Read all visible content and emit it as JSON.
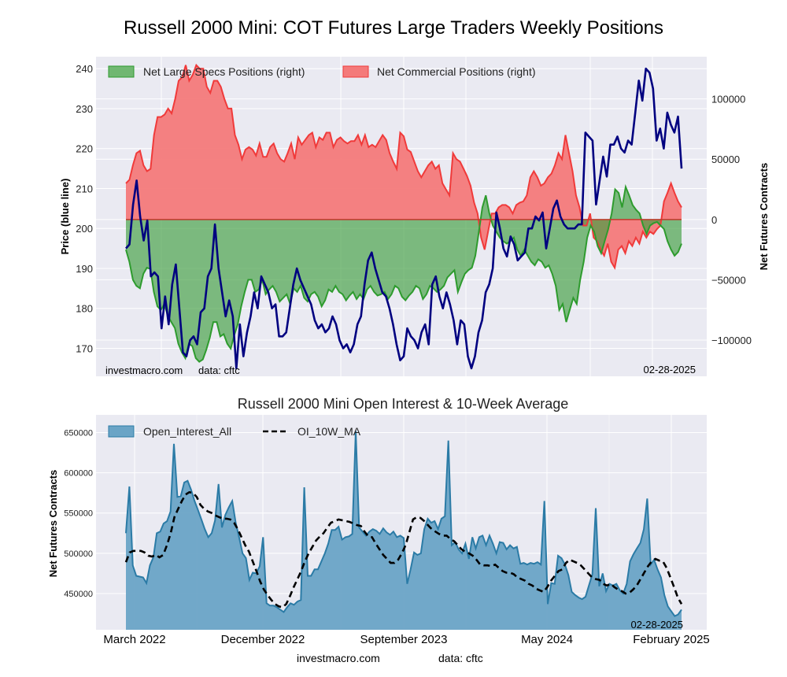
{
  "title": "Russell 2000 Mini: COT Futures Large Traders Weekly Positions",
  "colors": {
    "price": "#000080",
    "specs": "#2e9b2e",
    "commercial": "#f03a3a",
    "oi": "#2b7ba6",
    "ma": "#000000",
    "plot_bg": "#eaeaf2"
  },
  "chart_data": [
    {
      "type": "area",
      "title": "Russell 2000 Mini: COT Futures Large Traders Weekly Positions",
      "ylabel": "Price (blue line)",
      "ylabel_right": "Net Futures Contracts",
      "ylim": [
        163,
        243
      ],
      "ylim_right": [
        -130000,
        135000
      ],
      "yticks": [
        "170",
        "180",
        "190",
        "200",
        "210",
        "220",
        "230",
        "240"
      ],
      "yticks_right": [
        "-100000",
        "-50000",
        "0",
        "50000",
        "100000"
      ],
      "legend": [
        "Net Large Specs Positions (right)",
        "Net Commercial Positions (right)"
      ],
      "legend_position": "top-left",
      "watermark": "investmacro.com    data: cftc",
      "date_label": "02-28-2025",
      "x_start": "2022-02-22",
      "x_end": "2025-02-28",
      "series": [
        {
          "name": "Price (blue line)",
          "values": [
            195,
            196,
            206,
            212,
            203,
            197,
            202,
            188,
            189,
            188,
            175,
            183,
            176,
            186,
            191,
            180,
            169,
            168,
            172,
            173,
            171,
            179,
            180,
            188,
            190,
            201,
            190,
            184,
            178,
            182,
            178,
            165,
            176,
            168,
            174,
            178,
            184,
            180,
            188,
            186,
            184,
            180,
            181,
            173,
            173,
            174,
            180,
            186,
            190,
            187,
            185,
            183,
            181,
            177,
            175,
            176,
            174,
            175,
            178,
            176,
            172,
            170,
            171,
            169,
            171,
            176,
            178,
            186,
            192,
            194,
            190,
            187,
            184,
            183,
            180,
            176,
            171,
            167,
            168,
            175,
            173,
            172,
            170,
            174,
            176,
            171,
            186,
            188,
            183,
            180,
            184,
            181,
            177,
            171,
            177,
            176,
            168,
            165,
            168,
            174,
            177,
            184,
            186,
            190,
            204,
            200,
            195,
            193,
            198,
            196,
            192,
            193,
            194,
            200,
            200,
            203,
            202,
            204,
            195,
            200,
            205,
            207,
            203,
            201,
            200,
            200,
            200,
            201,
            201,
            224,
            223,
            222,
            206,
            212,
            218,
            213,
            221,
            221,
            223,
            220,
            219,
            222,
            221,
            229,
            237,
            232,
            240,
            239,
            235,
            222,
            225,
            220,
            229,
            226,
            224,
            228,
            215
          ]
        },
        {
          "name": "Net Large Specs Positions (right)",
          "values": [
            -25000,
            -35000,
            -50000,
            -55000,
            -57000,
            -45000,
            -40000,
            -41000,
            -60000,
            -72000,
            -75000,
            -70000,
            -80000,
            -85000,
            -90000,
            -103000,
            -110000,
            -115000,
            -103000,
            -105000,
            -115000,
            -118000,
            -116000,
            -108000,
            -98000,
            -85000,
            -85000,
            -97000,
            -95000,
            -103000,
            -107000,
            -96000,
            -87000,
            -72000,
            -60000,
            -50000,
            -50000,
            -60000,
            -58000,
            -50000,
            -62000,
            -58000,
            -55000,
            -60000,
            -68000,
            -65000,
            -62000,
            -70000,
            -57000,
            -60000,
            -55000,
            -65000,
            -68000,
            -62000,
            -60000,
            -64000,
            -72000,
            -67000,
            -58000,
            -60000,
            -55000,
            -60000,
            -62000,
            -67000,
            -63000,
            -60000,
            -66000,
            -62000,
            -66000,
            -58000,
            -55000,
            -60000,
            -63000,
            -62000,
            -60000,
            -66000,
            -62000,
            -55000,
            -57000,
            -64000,
            -67000,
            -63000,
            -60000,
            -55000,
            -57000,
            -66000,
            -62000,
            -55000,
            -57000,
            -60000,
            -58000,
            -55000,
            -48000,
            -45000,
            -42000,
            -60000,
            -52000,
            -45000,
            -42000,
            -40000,
            -30000,
            -10000,
            10000,
            20000,
            5000,
            -5000,
            -10000,
            -15000,
            -18000,
            -20000,
            -18000,
            -15000,
            -25000,
            -30000,
            -25000,
            -30000,
            -35000,
            -38000,
            -33000,
            -35000,
            -40000,
            -38000,
            -45000,
            -55000,
            -75000,
            -70000,
            -85000,
            -75000,
            -65000,
            -70000,
            -50000,
            -35000,
            -15000,
            -5000,
            -10000,
            -22000,
            -28000,
            -18000,
            -8000,
            5000,
            25000,
            22000,
            10000,
            27000,
            20000,
            12000,
            8000,
            5000,
            -5000,
            -12000,
            -5000,
            -3000,
            -2000,
            -5000,
            -8000,
            -18000,
            -25000,
            -30000,
            -27000,
            -20000
          ]
        },
        {
          "name": "Net Commercial Positions (right)",
          "values": [
            30000,
            33000,
            45000,
            55000,
            57000,
            45000,
            40000,
            42000,
            70000,
            85000,
            85000,
            87000,
            92000,
            88000,
            100000,
            115000,
            118000,
            128000,
            115000,
            120000,
            128000,
            125000,
            125000,
            110000,
            105000,
            115000,
            115000,
            110000,
            100000,
            92000,
            92000,
            70000,
            62000,
            50000,
            58000,
            60000,
            58000,
            53000,
            63000,
            52000,
            52000,
            60000,
            63000,
            55000,
            50000,
            48000,
            55000,
            63000,
            50000,
            68000,
            62000,
            66000,
            70000,
            72000,
            60000,
            68000,
            66000,
            72000,
            72000,
            60000,
            66000,
            68000,
            65000,
            63000,
            65000,
            65000,
            70000,
            62000,
            70000,
            60000,
            62000,
            60000,
            65000,
            70000,
            66000,
            55000,
            48000,
            42000,
            72000,
            69000,
            58000,
            56000,
            48000,
            40000,
            35000,
            40000,
            45000,
            48000,
            42000,
            45000,
            30000,
            25000,
            20000,
            55000,
            50000,
            48000,
            42000,
            36000,
            28000,
            14000,
            5000,
            -15000,
            -25000,
            -10000,
            5000,
            5000,
            10000,
            12000,
            12000,
            10000,
            5000,
            12000,
            14000,
            15000,
            20000,
            35000,
            40000,
            35000,
            28000,
            30000,
            35000,
            38000,
            45000,
            55000,
            50000,
            70000,
            55000,
            40000,
            20000,
            10000,
            -5000,
            -5000,
            5000,
            -15000,
            -18000,
            -25000,
            -30000,
            -20000,
            -35000,
            -40000,
            -25000,
            -22000,
            -28000,
            -18000,
            -22000,
            -15000,
            -20000,
            -10000,
            -15000,
            -10000,
            -12000,
            -8000,
            -5000,
            15000,
            22000,
            30000,
            22000,
            15000,
            10000
          ]
        }
      ]
    },
    {
      "type": "area",
      "title": "Russell 2000 Mini Open Interest & 10-Week Average",
      "ylabel": "Net Futures Contracts",
      "ylim": [
        405000,
        672000
      ],
      "yticks": [
        "450000",
        "500000",
        "550000",
        "600000",
        "650000"
      ],
      "xticks": [
        "March 2022",
        "December 2022",
        "September 2023",
        "May 2024",
        "February 2025"
      ],
      "legend": [
        "Open_Interest_All",
        "OI_10W_MA"
      ],
      "legend_position": "top-left",
      "date_label": "02-28-2025",
      "series": [
        {
          "name": "Open_Interest_All",
          "values": [
            525000,
            583000,
            485000,
            472000,
            471000,
            470000,
            463000,
            485000,
            495000,
            525000,
            527000,
            537000,
            540000,
            552000,
            636000,
            570000,
            571000,
            588000,
            590000,
            579000,
            565000,
            554000,
            542000,
            530000,
            520000,
            525000,
            541000,
            586000,
            532000,
            548000,
            557000,
            565000,
            538000,
            520000,
            500000,
            494000,
            467000,
            476000,
            475000,
            484000,
            520000,
            438000,
            435000,
            435000,
            433000,
            430000,
            427000,
            433000,
            438000,
            436000,
            440000,
            442000,
            582000,
            472000,
            472000,
            480000,
            480000,
            490000,
            500000,
            512000,
            529000,
            529000,
            533000,
            517000,
            520000,
            521000,
            524000,
            652000,
            532000,
            527000,
            522000,
            527000,
            530000,
            528000,
            524000,
            531000,
            526000,
            523000,
            527000,
            520000,
            522000,
            519000,
            462000,
            480000,
            501000,
            498000,
            500000,
            530000,
            543000,
            538000,
            540000,
            530000,
            543000,
            546000,
            640000,
            510000,
            514000,
            505000,
            500000,
            512000,
            493000,
            520000,
            506000,
            520000,
            522000,
            510000,
            522000,
            512000,
            500000,
            514000,
            513000,
            505000,
            510000,
            506000,
            508000,
            487000,
            488000,
            486000,
            488000,
            487000,
            489000,
            486000,
            565000,
            437000,
            463000,
            462000,
            497000,
            494000,
            486000,
            473000,
            452000,
            448000,
            445000,
            443000,
            446000,
            460000,
            474000,
            556000,
            459000,
            475000,
            453000,
            462000,
            460000,
            462000,
            454000,
            450000,
            462000,
            490000,
            499000,
            506000,
            513000,
            530000,
            568000,
            486000,
            492000,
            480000,
            470000,
            448000,
            434000,
            428000,
            422000,
            424000,
            430000
          ]
        },
        {
          "name": "OI_10W_MA",
          "values": [
            489000,
            501000,
            503000,
            503000,
            503000,
            501000,
            497000,
            496000,
            498000,
            495000,
            498000,
            510000,
            525000,
            545000,
            555000,
            565000,
            573000,
            576000,
            575000,
            570000,
            560000,
            555000,
            552000,
            550000,
            547000,
            545000,
            543000,
            543000,
            542000,
            538000,
            530000,
            520000,
            510000,
            502000,
            490000,
            478000,
            465000,
            455000,
            448000,
            442000,
            437000,
            434000,
            433000,
            437000,
            447000,
            458000,
            468000,
            478000,
            490000,
            500000,
            508000,
            516000,
            521000,
            525000,
            532000,
            538000,
            540000,
            542000,
            541000,
            540000,
            539000,
            537000,
            535000,
            534000,
            527000,
            521000,
            520000,
            512000,
            505000,
            498000,
            493000,
            488000,
            488000,
            492000,
            500000,
            510000,
            526000,
            542000,
            545000,
            544000,
            540000,
            535000,
            530000,
            527000,
            524000,
            522000,
            522000,
            518000,
            515000,
            510000,
            505000,
            502000,
            500000,
            497000,
            492000,
            486000,
            485000,
            485000,
            484000,
            486000,
            482000,
            478000,
            476000,
            476000,
            474000,
            470000,
            468000,
            466000,
            462000,
            460000,
            456000,
            454000,
            452000,
            458000,
            466000,
            472000,
            478000,
            480000,
            488000,
            492000,
            490000,
            488000,
            485000,
            480000,
            475000,
            470000,
            468000,
            467000,
            462000,
            460000,
            462000,
            458000,
            455000,
            453000,
            450000,
            451000,
            455000,
            460000,
            468000,
            476000,
            484000,
            490000,
            493000,
            491000,
            490000,
            482000,
            470000,
            458000,
            445000,
            437000
          ]
        }
      ]
    }
  ],
  "top_chart": {
    "watermark_site": "investmacro.com",
    "watermark_data": "data: cftc",
    "date": "02-28-2025"
  },
  "bottom_chart": {
    "date": "02-28-2025"
  },
  "footer": {
    "site": "investmacro.com",
    "data": "data: cftc"
  }
}
